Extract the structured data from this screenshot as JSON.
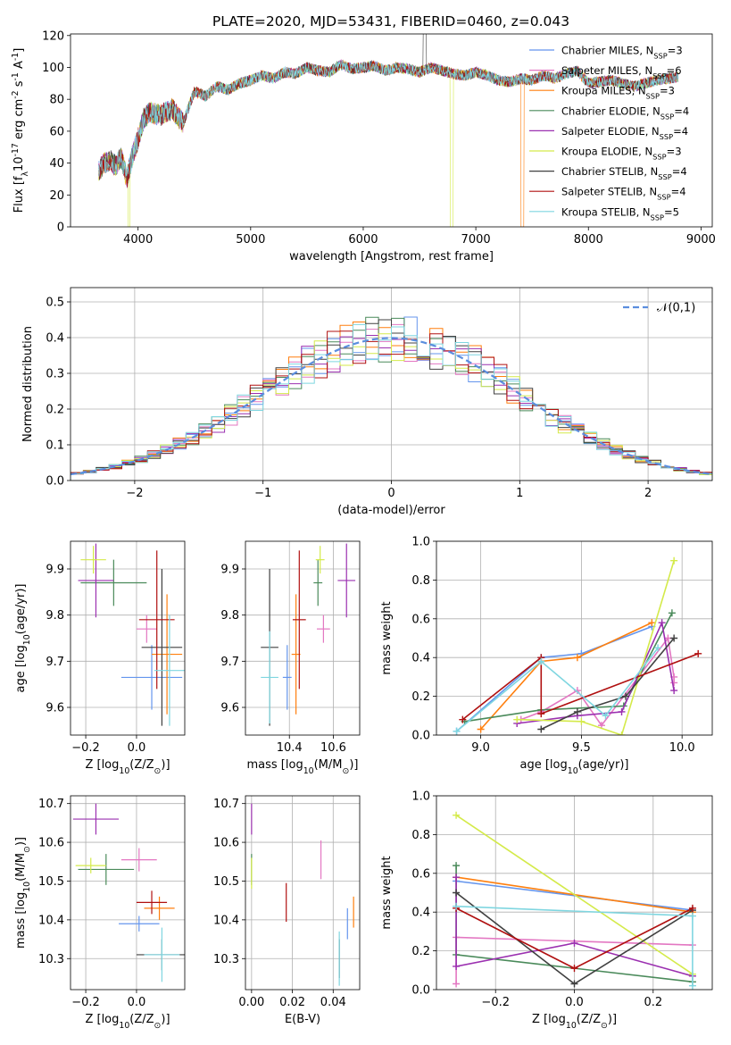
{
  "figure": {
    "title": "PLATE=2020, MJD=53431, FIBERID=0460, z=0.043"
  },
  "models": [
    {
      "label": "Chabrier MILES, N$_{SSP}$=3",
      "color": "#6495ed"
    },
    {
      "label": "Salpeter MILES, N$_{SSP}$=6",
      "color": "#e377c2"
    },
    {
      "label": "Kroupa MILES, N$_{SSP}$=3",
      "color": "#ff7f0e"
    },
    {
      "label": "Chabrier ELODIE, N$_{SSP}$=4",
      "color": "#4a8a5a"
    },
    {
      "label": "Salpeter ELODIE, N$_{SSP}$=4",
      "color": "#9b30b0"
    },
    {
      "label": "Kroupa ELODIE, N$_{SSP}$=3",
      "color": "#d4ea4a"
    },
    {
      "label": "Chabrier STELIB, N$_{SSP}$=4",
      "color": "#404040"
    },
    {
      "label": "Salpeter STELIB, N$_{SSP}$=4",
      "color": "#b01010"
    },
    {
      "label": "Kroupa STELIB, N$_{SSP}$=5",
      "color": "#7fd6e0"
    }
  ],
  "chart_data": [
    {
      "id": "spectrum",
      "type": "line",
      "xlabel": "wavelength [Angstrom, rest frame]",
      "ylabel": "Flux [f$_λ$10$^{-17}$ erg cm$^{-2}$ s$^{-1}$ A$^{-1}$]",
      "xlim": [
        3400,
        9100
      ],
      "ylim": [
        0,
        121
      ],
      "xticks": [
        4000,
        5000,
        6000,
        7000,
        8000,
        9000
      ],
      "yticks": [
        0,
        20,
        40,
        60,
        80,
        100,
        120
      ],
      "grid": false,
      "legend": "top-right",
      "x": [
        3650,
        3700,
        3750,
        3800,
        3850,
        3900,
        3950,
        4000,
        4050,
        4100,
        4200,
        4300,
        4400,
        4500,
        4600,
        4700,
        4800,
        4900,
        5000,
        5100,
        5200,
        5300,
        5400,
        5500,
        5600,
        5700,
        5800,
        5900,
        6000,
        6100,
        6200,
        6300,
        6400,
        6500,
        6600,
        6700,
        6800,
        6900,
        7000,
        7100,
        7200,
        7300,
        7400,
        7500,
        7600,
        7700,
        7800,
        7900,
        8000,
        8200,
        8400,
        8600,
        8800
      ],
      "y": [
        35,
        40,
        42,
        38,
        44,
        30,
        45,
        55,
        68,
        72,
        70,
        74,
        65,
        85,
        82,
        88,
        86,
        90,
        92,
        95,
        93,
        97,
        96,
        100,
        98,
        97,
        102,
        99,
        100,
        101,
        98,
        100,
        99,
        97,
        100,
        98,
        96,
        95,
        97,
        95,
        92,
        91,
        93,
        92,
        95,
        93,
        96,
        98,
        90,
        92,
        88,
        92,
        94
      ]
    },
    {
      "id": "residuals",
      "type": "histogram",
      "xlabel": "(data-model)/error",
      "ylabel": "Normed distribution",
      "xlim": [
        -2.5,
        2.5
      ],
      "ylim": [
        0,
        0.54
      ],
      "xticks": [
        -2,
        -1,
        0,
        1,
        2
      ],
      "yticks": [
        0.0,
        0.1,
        0.2,
        0.3,
        0.4,
        0.5
      ],
      "grid": true,
      "legend": "top-right",
      "reference_label": "$\\mathcal{N}(0,1)$",
      "bin_width": 0.1,
      "bin_start": -2.5
    },
    {
      "id": "age_vs_Z",
      "type": "scatter",
      "xlabel": "Z [log$_{10}$(Z/Z$_⊙$)]",
      "ylabel": "age  [log$_{10}$(age/yr)]",
      "xlim": [
        -0.26,
        0.19
      ],
      "ylim": [
        9.54,
        9.96
      ],
      "xticks": [
        -0.2,
        0.0
      ],
      "yticks": [
        9.6,
        9.7,
        9.8,
        9.9
      ],
      "grid": true,
      "points": [
        {
          "x": 0.06,
          "y": 9.665,
          "xerr": 0.12,
          "yerr": 0.07
        },
        {
          "x": 0.04,
          "y": 9.77,
          "xerr": 0.04,
          "yerr": 0.03
        },
        {
          "x": 0.12,
          "y": 9.715,
          "xerr": 0.06,
          "yerr": 0.13
        },
        {
          "x": -0.09,
          "y": 9.87,
          "xerr": 0.13,
          "yerr": 0.05
        },
        {
          "x": -0.16,
          "y": 9.875,
          "xerr": 0.07,
          "yerr": 0.08
        },
        {
          "x": -0.17,
          "y": 9.92,
          "xerr": 0.05,
          "yerr": 0.03
        },
        {
          "x": 0.1,
          "y": 9.73,
          "xerr": 0.08,
          "yerr": 0.17
        },
        {
          "x": 0.08,
          "y": 9.79,
          "xerr": 0.07,
          "yerr": 0.15
        },
        {
          "x": 0.13,
          "y": 9.68,
          "xerr": 0.06,
          "yerr": 0.12
        }
      ]
    },
    {
      "id": "age_vs_mass",
      "type": "scatter",
      "xlabel": "mass [log$_{10}$(M/M$_⊙$)]",
      "ylabel": "",
      "xlim": [
        10.2,
        10.72
      ],
      "ylim": [
        9.54,
        9.96
      ],
      "xticks": [
        10.4,
        10.6
      ],
      "yticks": [
        9.6,
        9.7,
        9.8,
        9.9
      ],
      "grid": true,
      "points": [
        {
          "x": 10.39,
          "y": 9.665,
          "xerr": 0.02,
          "yerr": 0.07
        },
        {
          "x": 10.555,
          "y": 9.77,
          "xerr": 0.03,
          "yerr": 0.03
        },
        {
          "x": 10.43,
          "y": 9.715,
          "xerr": 0.02,
          "yerr": 0.13
        },
        {
          "x": 10.53,
          "y": 9.87,
          "xerr": 0.02,
          "yerr": 0.05
        },
        {
          "x": 10.66,
          "y": 9.875,
          "xerr": 0.04,
          "yerr": 0.08
        },
        {
          "x": 10.54,
          "y": 9.92,
          "xerr": 0.02,
          "yerr": 0.03
        },
        {
          "x": 10.31,
          "y": 9.73,
          "xerr": 0.04,
          "yerr": 0.17
        },
        {
          "x": 10.445,
          "y": 9.79,
          "xerr": 0.03,
          "yerr": 0.15
        },
        {
          "x": 10.31,
          "y": 9.665,
          "xerr": 0.04,
          "yerr": 0.1
        }
      ]
    },
    {
      "id": "weight_vs_age",
      "type": "line",
      "xlabel": "age  [log$_{10}$(age/yr)]",
      "ylabel": "mass weight",
      "xlim": [
        8.78,
        10.15
      ],
      "ylim": [
        0,
        1
      ],
      "xticks": [
        9.0,
        9.5,
        10.0
      ],
      "yticks": [
        0.0,
        0.2,
        0.4,
        0.6,
        0.8,
        1.0
      ],
      "grid": true,
      "series": [
        {
          "x": [
            8.88,
            9.3,
            9.5,
            9.85
          ],
          "y": [
            0.02,
            0.4,
            0.42,
            0.56
          ]
        },
        {
          "x": [
            9.2,
            9.3,
            9.48,
            9.6,
            9.93,
            9.96,
            9.96
          ],
          "y": [
            0.08,
            0.12,
            0.23,
            0.05,
            0.5,
            0.3,
            0.27
          ]
        },
        {
          "x": [
            9.0,
            9.3,
            9.48,
            9.85
          ],
          "y": [
            0.03,
            0.38,
            0.4,
            0.58
          ]
        },
        {
          "x": [
            8.92,
            9.3,
            9.71,
            9.95
          ],
          "y": [
            0.07,
            0.13,
            0.15,
            0.63
          ]
        },
        {
          "x": [
            9.18,
            9.48,
            9.7,
            9.9,
            9.96
          ],
          "y": [
            0.06,
            0.1,
            0.12,
            0.58,
            0.23
          ]
        },
        {
          "x": [
            9.18,
            9.5,
            9.7,
            9.96
          ],
          "y": [
            0.08,
            0.07,
            0.0,
            0.9
          ]
        },
        {
          "x": [
            9.3,
            9.48,
            9.72,
            9.96
          ],
          "y": [
            0.03,
            0.12,
            0.2,
            0.5
          ]
        },
        {
          "x": [
            8.91,
            9.3,
            9.3,
            10.08
          ],
          "y": [
            0.08,
            0.4,
            0.11,
            0.42
          ]
        },
        {
          "x": [
            8.88,
            9.3,
            9.62,
            9.88
          ],
          "y": [
            0.02,
            0.38,
            0.1,
            0.45
          ]
        }
      ]
    },
    {
      "id": "mass_vs_Z",
      "type": "scatter",
      "xlabel": "Z [log$_{10}$(Z/Z$_⊙$)]",
      "ylabel": "mass [log$_{10}$(M/M$_⊙$)]",
      "xlim": [
        -0.26,
        0.19
      ],
      "ylim": [
        10.22,
        10.72
      ],
      "xticks": [
        -0.2,
        0.0
      ],
      "yticks": [
        10.3,
        10.4,
        10.5,
        10.6,
        10.7
      ],
      "grid": true,
      "points": [
        {
          "x": 0.01,
          "y": 10.39,
          "xerr": 0.08,
          "yerr": 0.02
        },
        {
          "x": 0.01,
          "y": 10.555,
          "xerr": 0.07,
          "yerr": 0.03
        },
        {
          "x": 0.09,
          "y": 10.43,
          "xerr": 0.06,
          "yerr": 0.03
        },
        {
          "x": -0.12,
          "y": 10.53,
          "xerr": 0.11,
          "yerr": 0.04
        },
        {
          "x": -0.16,
          "y": 10.66,
          "xerr": 0.09,
          "yerr": 0.04
        },
        {
          "x": -0.18,
          "y": 10.54,
          "xerr": 0.06,
          "yerr": 0.02
        },
        {
          "x": 0.1,
          "y": 10.31,
          "xerr": 0.1,
          "yerr": 0.04
        },
        {
          "x": 0.06,
          "y": 10.445,
          "xerr": 0.06,
          "yerr": 0.03
        },
        {
          "x": 0.1,
          "y": 10.31,
          "xerr": 0.07,
          "yerr": 0.07
        }
      ]
    },
    {
      "id": "mass_vs_EBV",
      "type": "scatter",
      "xlabel": "E(B-V)",
      "ylabel": "",
      "xlim": [
        -0.003,
        0.053
      ],
      "ylim": [
        10.22,
        10.72
      ],
      "xticks": [
        0.0,
        0.02,
        0.04
      ],
      "yticks": [
        10.3,
        10.4,
        10.5,
        10.6,
        10.7
      ],
      "grid": true,
      "points": [
        {
          "x": 0.047,
          "y": 10.39,
          "xerr": 0,
          "yerr": 0.04
        },
        {
          "x": 0.034,
          "y": 10.555,
          "xerr": 0,
          "yerr": 0.05
        },
        {
          "x": 0.05,
          "y": 10.42,
          "xerr": 0,
          "yerr": 0.04
        },
        {
          "x": 0.0,
          "y": 10.53,
          "xerr": 0,
          "yerr": 0.04
        },
        {
          "x": 0.0,
          "y": 10.66,
          "xerr": 0,
          "yerr": 0.04
        },
        {
          "x": 0.0,
          "y": 10.52,
          "xerr": 0,
          "yerr": 0.04
        },
        {
          "x": 0.043,
          "y": 10.3,
          "xerr": 0,
          "yerr": 0.05
        },
        {
          "x": 0.017,
          "y": 10.445,
          "xerr": 0,
          "yerr": 0.05
        },
        {
          "x": 0.043,
          "y": 10.3,
          "xerr": 0,
          "yerr": 0.07
        }
      ]
    },
    {
      "id": "weight_vs_Z",
      "type": "line",
      "xlabel": "Z [log$_{10}$(Z/Z$_⊙$)]",
      "ylabel": "mass weight",
      "xlim": [
        -0.35,
        0.35
      ],
      "ylim": [
        0,
        1
      ],
      "xticks": [
        -0.2,
        0.0,
        0.2
      ],
      "yticks": [
        0.0,
        0.2,
        0.4,
        0.6,
        0.8,
        1.0
      ],
      "grid": true,
      "series": [
        {
          "x": [
            -0.3,
            0.3
          ],
          "y": [
            0.56,
            0.41
          ]
        },
        {
          "x": [
            -0.3,
            -0.3,
            0.3
          ],
          "y": [
            0.03,
            0.27,
            0.23
          ]
        },
        {
          "x": [
            -0.3,
            0.3
          ],
          "y": [
            0.58,
            0.4
          ]
        },
        {
          "x": [
            -0.3,
            -0.3,
            0.3
          ],
          "y": [
            0.64,
            0.18,
            0.04
          ]
        },
        {
          "x": [
            -0.3,
            -0.3,
            0.0,
            0.3
          ],
          "y": [
            0.58,
            0.12,
            0.24,
            0.07
          ]
        },
        {
          "x": [
            -0.3,
            0.3
          ],
          "y": [
            0.9,
            0.08
          ]
        },
        {
          "x": [
            -0.3,
            0.0,
            0.3
          ],
          "y": [
            0.5,
            0.03,
            0.41
          ]
        },
        {
          "x": [
            -0.3,
            0.0,
            0.3
          ],
          "y": [
            0.42,
            0.11,
            0.42
          ]
        },
        {
          "x": [
            -0.3,
            0.3,
            0.3
          ],
          "y": [
            0.43,
            0.38,
            0.02
          ]
        }
      ]
    }
  ]
}
